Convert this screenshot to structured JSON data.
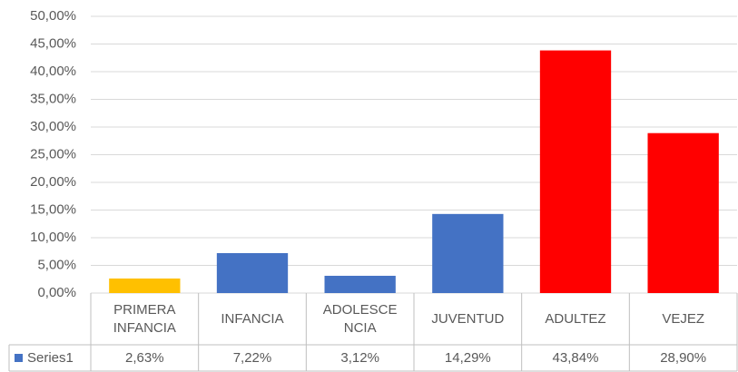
{
  "chart_data": {
    "type": "bar",
    "categories": [
      "PRIMERA INFANCIA",
      "INFANCIA",
      "ADOLESCENCIA",
      "JUVENTUD",
      "ADULTEZ",
      "VEJEZ"
    ],
    "series": [
      {
        "name": "Series1",
        "color": "#4472c4",
        "values": [
          2.63,
          7.22,
          3.12,
          14.29,
          43.84,
          28.9
        ],
        "value_labels": [
          "2,63%",
          "7,22%",
          "3,12%",
          "14,29%",
          "43,84%",
          "28,90%"
        ],
        "colors": [
          "#ffc000",
          "#4472c4",
          "#4472c4",
          "#4472c4",
          "#ff0000",
          "#ff0000"
        ]
      }
    ],
    "ylim": [
      0,
      50
    ],
    "yticks": [
      {
        "value": 0,
        "label": "0,00%"
      },
      {
        "value": 5,
        "label": "5,00%"
      },
      {
        "value": 10,
        "label": "10,00%"
      },
      {
        "value": 15,
        "label": "15,00%"
      },
      {
        "value": 20,
        "label": "20,00%"
      },
      {
        "value": 25,
        "label": "25,00%"
      },
      {
        "value": 30,
        "label": "30,00%"
      },
      {
        "value": 35,
        "label": "35,00%"
      },
      {
        "value": 40,
        "label": "40,00%"
      },
      {
        "value": 45,
        "label": "45,00%"
      },
      {
        "value": 50,
        "label": "50,00%"
      }
    ],
    "grid": true,
    "legend": "table"
  }
}
